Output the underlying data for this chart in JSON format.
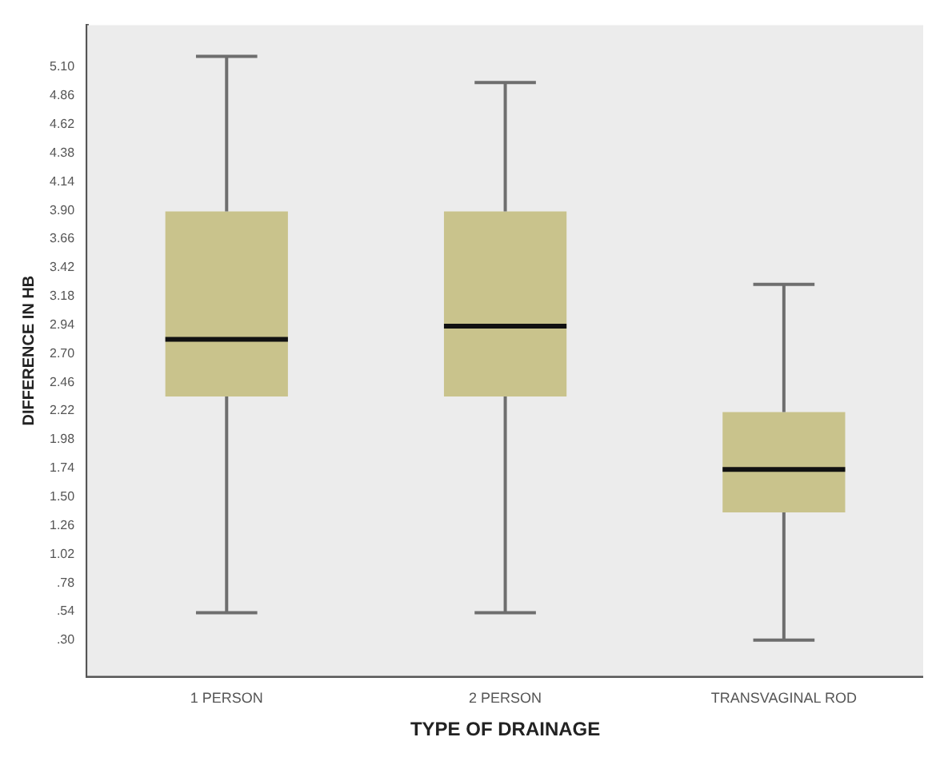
{
  "chart_data": {
    "type": "box",
    "xlabel": "TYPE OF DRAINAGE",
    "ylabel": "DIFFERENCE IN HB",
    "categories": [
      "1 PERSON",
      "2 PERSON",
      "TRANSVAGINAL ROD"
    ],
    "color": "#c9c38c",
    "boxes": [
      {
        "low": 0.53,
        "q1": 2.34,
        "median": 2.82,
        "q3": 3.89,
        "high": 5.19
      },
      {
        "low": 0.53,
        "q1": 2.34,
        "median": 2.93,
        "q3": 3.89,
        "high": 4.97
      },
      {
        "low": 0.3,
        "q1": 1.37,
        "median": 1.73,
        "q3": 2.21,
        "high": 3.28
      }
    ],
    "ylim": [
      0,
      5.45
    ],
    "yticks": [
      {
        "value": 0.3,
        "label": ".30"
      },
      {
        "value": 0.54,
        "label": ".54"
      },
      {
        "value": 0.78,
        "label": ".78"
      },
      {
        "value": 1.02,
        "label": "1.02"
      },
      {
        "value": 1.26,
        "label": "1.26"
      },
      {
        "value": 1.5,
        "label": "1.50"
      },
      {
        "value": 1.74,
        "label": "1.74"
      },
      {
        "value": 1.98,
        "label": "1.98"
      },
      {
        "value": 2.22,
        "label": "2.22"
      },
      {
        "value": 2.46,
        "label": "2.46"
      },
      {
        "value": 2.7,
        "label": "2.70"
      },
      {
        "value": 2.94,
        "label": "2.94"
      },
      {
        "value": 3.18,
        "label": "3.18"
      },
      {
        "value": 3.42,
        "label": "3.42"
      },
      {
        "value": 3.66,
        "label": "3.66"
      },
      {
        "value": 3.9,
        "label": "3.90"
      },
      {
        "value": 4.14,
        "label": "4.14"
      },
      {
        "value": 4.38,
        "label": "4.38"
      },
      {
        "value": 4.62,
        "label": "4.62"
      },
      {
        "value": 4.86,
        "label": "4.86"
      },
      {
        "value": 5.1,
        "label": "5.10"
      }
    ],
    "grid": false
  }
}
